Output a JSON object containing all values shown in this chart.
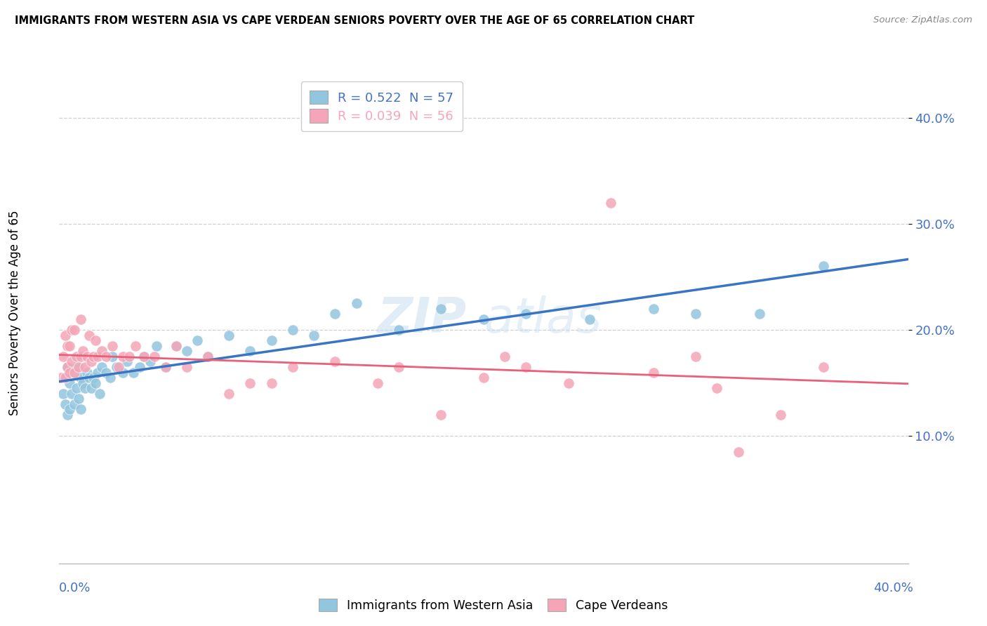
{
  "title": "IMMIGRANTS FROM WESTERN ASIA VS CAPE VERDEAN SENIORS POVERTY OVER THE AGE OF 65 CORRELATION CHART",
  "source": "Source: ZipAtlas.com",
  "ylabel": "Seniors Poverty Over the Age of 65",
  "xlim": [
    0.0,
    0.4
  ],
  "ylim": [
    -0.02,
    0.44
  ],
  "legend1_r": "0.522",
  "legend1_n": "57",
  "legend2_r": "0.039",
  "legend2_n": "56",
  "blue_color": "#92c5de",
  "pink_color": "#f4a6b8",
  "blue_line_color": "#3a75c4",
  "pink_line_color": "#e8607a",
  "axis_color": "#4472c4",
  "blue_scatter_x": [
    0.002,
    0.003,
    0.003,
    0.004,
    0.004,
    0.005,
    0.005,
    0.006,
    0.007,
    0.007,
    0.008,
    0.008,
    0.009,
    0.01,
    0.01,
    0.011,
    0.012,
    0.013,
    0.014,
    0.015,
    0.016,
    0.017,
    0.018,
    0.019,
    0.02,
    0.022,
    0.024,
    0.025,
    0.027,
    0.03,
    0.032,
    0.035,
    0.038,
    0.04,
    0.043,
    0.046,
    0.05,
    0.055,
    0.06,
    0.065,
    0.07,
    0.08,
    0.09,
    0.1,
    0.11,
    0.12,
    0.13,
    0.14,
    0.16,
    0.18,
    0.2,
    0.22,
    0.25,
    0.28,
    0.3,
    0.33,
    0.36
  ],
  "blue_scatter_y": [
    0.14,
    0.13,
    0.155,
    0.12,
    0.165,
    0.125,
    0.15,
    0.14,
    0.13,
    0.16,
    0.145,
    0.165,
    0.135,
    0.125,
    0.155,
    0.15,
    0.145,
    0.16,
    0.155,
    0.145,
    0.155,
    0.15,
    0.16,
    0.14,
    0.165,
    0.16,
    0.155,
    0.175,
    0.165,
    0.16,
    0.17,
    0.16,
    0.165,
    0.175,
    0.17,
    0.185,
    0.165,
    0.185,
    0.18,
    0.19,
    0.175,
    0.195,
    0.18,
    0.19,
    0.2,
    0.195,
    0.215,
    0.225,
    0.2,
    0.22,
    0.21,
    0.215,
    0.21,
    0.22,
    0.215,
    0.215,
    0.26
  ],
  "pink_scatter_x": [
    0.001,
    0.002,
    0.003,
    0.003,
    0.004,
    0.004,
    0.005,
    0.005,
    0.006,
    0.006,
    0.007,
    0.007,
    0.008,
    0.009,
    0.01,
    0.01,
    0.011,
    0.012,
    0.013,
    0.014,
    0.015,
    0.016,
    0.017,
    0.018,
    0.02,
    0.022,
    0.025,
    0.028,
    0.03,
    0.033,
    0.036,
    0.04,
    0.045,
    0.05,
    0.055,
    0.06,
    0.07,
    0.08,
    0.09,
    0.1,
    0.11,
    0.13,
    0.15,
    0.16,
    0.18,
    0.2,
    0.21,
    0.22,
    0.24,
    0.26,
    0.28,
    0.3,
    0.31,
    0.32,
    0.34,
    0.36
  ],
  "pink_scatter_y": [
    0.155,
    0.175,
    0.155,
    0.195,
    0.165,
    0.185,
    0.16,
    0.185,
    0.17,
    0.2,
    0.16,
    0.2,
    0.175,
    0.165,
    0.175,
    0.21,
    0.18,
    0.165,
    0.175,
    0.195,
    0.17,
    0.175,
    0.19,
    0.175,
    0.18,
    0.175,
    0.185,
    0.165,
    0.175,
    0.175,
    0.185,
    0.175,
    0.175,
    0.165,
    0.185,
    0.165,
    0.175,
    0.14,
    0.15,
    0.15,
    0.165,
    0.17,
    0.15,
    0.165,
    0.12,
    0.155,
    0.175,
    0.165,
    0.15,
    0.32,
    0.16,
    0.175,
    0.145,
    0.085,
    0.12,
    0.165
  ]
}
